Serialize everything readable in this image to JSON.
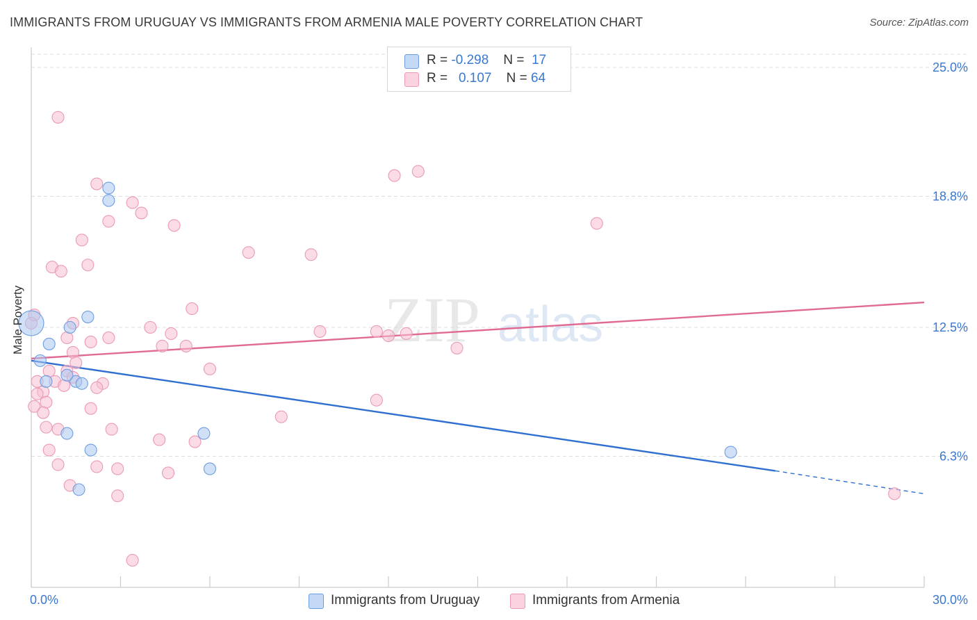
{
  "title": "IMMIGRANTS FROM URUGUAY VS IMMIGRANTS FROM ARMENIA MALE POVERTY CORRELATION CHART",
  "source": "Source: ZipAtlas.com",
  "watermark": {
    "zip": "ZIP",
    "atlas": "atlas"
  },
  "legend": {
    "uruguay": {
      "r_label": "R =",
      "r_value": "-0.298",
      "n_label": "N =",
      "n_value": "17"
    },
    "armenia": {
      "r_label": "R =",
      "r_value": "0.107",
      "n_label": "N =",
      "n_value": "64"
    }
  },
  "colors": {
    "uruguay_fill": "#aac8f0",
    "uruguay_stroke": "#6d9de0",
    "uruguay_line": "#2f6fd0",
    "armenia_fill": "#f8c0d2",
    "armenia_stroke": "#ea9ab4",
    "armenia_line": "#e06a92",
    "axis_label": "#3a78d0",
    "grid": "#dddddd"
  },
  "chart_data": {
    "type": "scatter",
    "title": "IMMIGRANTS FROM URUGUAY VS IMMIGRANTS FROM ARMENIA MALE POVERTY CORRELATION CHART",
    "xlabel": "",
    "ylabel": "Male Poverty",
    "xlim": [
      0,
      30
    ],
    "ylim": [
      0,
      25
    ],
    "x_tick_labels": [
      "0.0%",
      "30.0%"
    ],
    "y_ticks": [
      {
        "value": 25.0,
        "label": "25.0%"
      },
      {
        "value": 18.8,
        "label": "18.8%"
      },
      {
        "value": 12.5,
        "label": "12.5%"
      },
      {
        "value": 6.3,
        "label": "6.3%"
      }
    ],
    "series": [
      {
        "name": "Immigrants from Uruguay",
        "points": [
          {
            "x": 0.0,
            "y": 12.7,
            "big": true
          },
          {
            "x": 2.6,
            "y": 19.2
          },
          {
            "x": 2.6,
            "y": 18.6
          },
          {
            "x": 1.9,
            "y": 13.0
          },
          {
            "x": 1.3,
            "y": 12.5
          },
          {
            "x": 0.6,
            "y": 11.7
          },
          {
            "x": 0.3,
            "y": 10.9
          },
          {
            "x": 0.5,
            "y": 9.9
          },
          {
            "x": 1.5,
            "y": 9.9
          },
          {
            "x": 1.7,
            "y": 9.8
          },
          {
            "x": 1.2,
            "y": 10.2
          },
          {
            "x": 1.2,
            "y": 7.4
          },
          {
            "x": 2.0,
            "y": 6.6
          },
          {
            "x": 5.8,
            "y": 7.4
          },
          {
            "x": 6.0,
            "y": 5.7
          },
          {
            "x": 1.6,
            "y": 4.7
          },
          {
            "x": 23.5,
            "y": 6.5
          }
        ],
        "trend": {
          "x0": 0.0,
          "y0": 10.9,
          "x1": 25.0,
          "y1": 5.6,
          "dash_x1": 30.0,
          "dash_y1": 4.5
        }
      },
      {
        "name": "Immigrants from Armenia",
        "points": [
          {
            "x": 0.9,
            "y": 22.6
          },
          {
            "x": 2.2,
            "y": 19.4
          },
          {
            "x": 2.6,
            "y": 17.6
          },
          {
            "x": 3.4,
            "y": 18.5
          },
          {
            "x": 3.7,
            "y": 18.0
          },
          {
            "x": 4.8,
            "y": 17.4
          },
          {
            "x": 1.7,
            "y": 16.7
          },
          {
            "x": 7.3,
            "y": 16.1
          },
          {
            "x": 9.4,
            "y": 16.0
          },
          {
            "x": 0.7,
            "y": 15.4
          },
          {
            "x": 1.0,
            "y": 15.2
          },
          {
            "x": 1.9,
            "y": 15.5
          },
          {
            "x": 12.2,
            "y": 19.8
          },
          {
            "x": 13.0,
            "y": 20.0
          },
          {
            "x": 19.0,
            "y": 17.5
          },
          {
            "x": 5.4,
            "y": 13.4
          },
          {
            "x": 0.1,
            "y": 13.1
          },
          {
            "x": 1.4,
            "y": 12.7
          },
          {
            "x": 4.0,
            "y": 12.5
          },
          {
            "x": 4.7,
            "y": 12.2
          },
          {
            "x": 9.7,
            "y": 12.3
          },
          {
            "x": 11.6,
            "y": 12.3
          },
          {
            "x": 12.0,
            "y": 12.1
          },
          {
            "x": 12.6,
            "y": 12.2
          },
          {
            "x": 1.2,
            "y": 12.0
          },
          {
            "x": 2.6,
            "y": 12.0
          },
          {
            "x": 2.0,
            "y": 11.8
          },
          {
            "x": 4.4,
            "y": 11.6
          },
          {
            "x": 5.2,
            "y": 11.6
          },
          {
            "x": 14.3,
            "y": 11.5
          },
          {
            "x": 1.4,
            "y": 11.3
          },
          {
            "x": 1.5,
            "y": 10.8
          },
          {
            "x": 6.0,
            "y": 10.5
          },
          {
            "x": 0.6,
            "y": 10.4
          },
          {
            "x": 1.2,
            "y": 10.4
          },
          {
            "x": 1.4,
            "y": 10.1
          },
          {
            "x": 0.2,
            "y": 9.9
          },
          {
            "x": 0.8,
            "y": 9.9
          },
          {
            "x": 2.4,
            "y": 9.8
          },
          {
            "x": 1.1,
            "y": 9.7
          },
          {
            "x": 2.2,
            "y": 9.6
          },
          {
            "x": 0.4,
            "y": 9.4
          },
          {
            "x": 0.2,
            "y": 9.3
          },
          {
            "x": 11.6,
            "y": 9.0
          },
          {
            "x": 0.5,
            "y": 8.9
          },
          {
            "x": 0.1,
            "y": 8.7
          },
          {
            "x": 2.0,
            "y": 8.6
          },
          {
            "x": 0.4,
            "y": 8.4
          },
          {
            "x": 8.4,
            "y": 8.2
          },
          {
            "x": 0.5,
            "y": 7.7
          },
          {
            "x": 0.9,
            "y": 7.6
          },
          {
            "x": 2.7,
            "y": 7.6
          },
          {
            "x": 4.3,
            "y": 7.1
          },
          {
            "x": 5.5,
            "y": 7.0
          },
          {
            "x": 0.6,
            "y": 6.6
          },
          {
            "x": 0.9,
            "y": 5.9
          },
          {
            "x": 2.2,
            "y": 5.8
          },
          {
            "x": 2.9,
            "y": 5.7
          },
          {
            "x": 4.6,
            "y": 5.5
          },
          {
            "x": 1.3,
            "y": 4.9
          },
          {
            "x": 2.9,
            "y": 4.4
          },
          {
            "x": 3.4,
            "y": 1.3
          },
          {
            "x": 29.0,
            "y": 4.5
          },
          {
            "x": 0.0,
            "y": 12.7
          }
        ],
        "trend": {
          "x0": 0.0,
          "y0": 11.0,
          "x1": 30.0,
          "y1": 13.7
        }
      }
    ],
    "legend_position": "bottom-center"
  }
}
